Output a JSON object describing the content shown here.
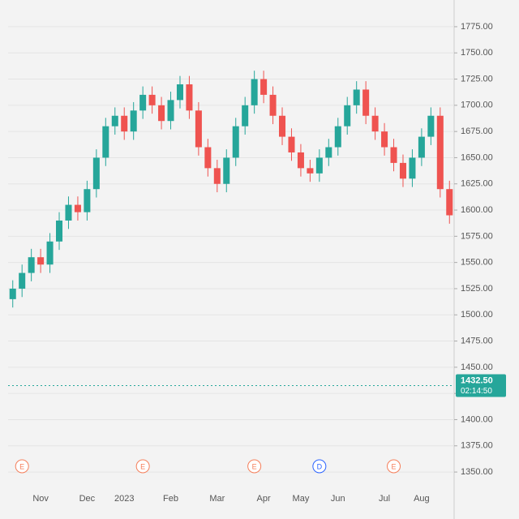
{
  "chart_data": {
    "type": "candlestick",
    "categories": [
      null,
      null,
      null,
      "Nov",
      null,
      null,
      null,
      null,
      "Dec",
      null,
      null,
      null,
      "2023",
      null,
      null,
      null,
      null,
      "Feb",
      null,
      null,
      null,
      null,
      "Mar",
      null,
      null,
      null,
      null,
      "Apr",
      null,
      null,
      null,
      "May",
      null,
      null,
      null,
      "Jun",
      null,
      null,
      null,
      null,
      "Jul",
      null,
      null,
      null,
      "Aug",
      null,
      null,
      null
    ],
    "open": [
      1515,
      1525,
      1540,
      1555,
      1548,
      1570,
      1590,
      1605,
      1598,
      1620,
      1650,
      1680,
      1690,
      1675,
      1695,
      1710,
      1700,
      1685,
      1705,
      1720,
      1695,
      1660,
      1640,
      1625,
      1650,
      1680,
      1700,
      1725,
      1710,
      1690,
      1670,
      1655,
      1640,
      1635,
      1650,
      1660,
      1680,
      1700,
      1715,
      1690,
      1675,
      1660,
      1645,
      1630,
      1650,
      1670,
      1690,
      1620
    ],
    "high": [
      1533,
      1548,
      1563,
      1563,
      1578,
      1598,
      1613,
      1613,
      1628,
      1658,
      1688,
      1698,
      1698,
      1703,
      1718,
      1718,
      1708,
      1713,
      1728,
      1728,
      1703,
      1668,
      1648,
      1658,
      1688,
      1708,
      1733,
      1733,
      1718,
      1698,
      1678,
      1663,
      1648,
      1658,
      1668,
      1688,
      1708,
      1723,
      1723,
      1698,
      1683,
      1668,
      1653,
      1658,
      1678,
      1698,
      1698,
      1628
    ],
    "low": [
      1507,
      1517,
      1532,
      1540,
      1540,
      1562,
      1582,
      1590,
      1590,
      1612,
      1642,
      1672,
      1667,
      1667,
      1687,
      1692,
      1677,
      1677,
      1697,
      1687,
      1652,
      1632,
      1617,
      1617,
      1642,
      1672,
      1692,
      1702,
      1682,
      1662,
      1647,
      1632,
      1627,
      1627,
      1642,
      1652,
      1672,
      1692,
      1682,
      1667,
      1652,
      1637,
      1622,
      1622,
      1642,
      1662,
      1612,
      1587
    ],
    "close": [
      1525,
      1540,
      1555,
      1548,
      1570,
      1590,
      1605,
      1598,
      1620,
      1650,
      1680,
      1690,
      1675,
      1695,
      1710,
      1700,
      1685,
      1705,
      1720,
      1695,
      1660,
      1640,
      1625,
      1650,
      1680,
      1700,
      1725,
      1710,
      1690,
      1670,
      1655,
      1640,
      1635,
      1650,
      1660,
      1680,
      1700,
      1715,
      1690,
      1675,
      1660,
      1645,
      1630,
      1650,
      1670,
      1690,
      1620,
      1595
    ],
    "up_color": "#26a69a",
    "down_color": "#ef5350",
    "ylim": [
      1340,
      1785
    ],
    "yticks": [
      {
        "value": 1350,
        "label": "1350.00"
      },
      {
        "value": 1375,
        "label": "1375.00"
      },
      {
        "value": 1400,
        "label": "1400.00"
      },
      {
        "value": 1425,
        "label": "1425.00"
      },
      {
        "value": 1450,
        "label": "1450.00"
      },
      {
        "value": 1475,
        "label": "1475.00"
      },
      {
        "value": 1500,
        "label": "1500.00"
      },
      {
        "value": 1525,
        "label": "1525.00"
      },
      {
        "value": 1550,
        "label": "1550.00"
      },
      {
        "value": 1575,
        "label": "1575.00"
      },
      {
        "value": 1600,
        "label": "1600.00"
      },
      {
        "value": 1625,
        "label": "1625.00"
      },
      {
        "value": 1650,
        "label": "1650.00"
      },
      {
        "value": 1675,
        "label": "1675.00"
      },
      {
        "value": 1700,
        "label": "1700.00"
      },
      {
        "value": 1725,
        "label": "1725.00"
      },
      {
        "value": 1750,
        "label": "1750.00"
      },
      {
        "value": 1775,
        "label": "1775.00"
      }
    ],
    "last_price": {
      "value": 1432.5,
      "label": "1432.50",
      "timer": "02:14:50"
    },
    "events": [
      {
        "index": 1,
        "label": "E"
      },
      {
        "index": 14,
        "label": "E"
      },
      {
        "index": 26,
        "label": "E"
      },
      {
        "index": 33,
        "label": "D"
      },
      {
        "index": 41,
        "label": "E"
      }
    ],
    "grid": true
  }
}
